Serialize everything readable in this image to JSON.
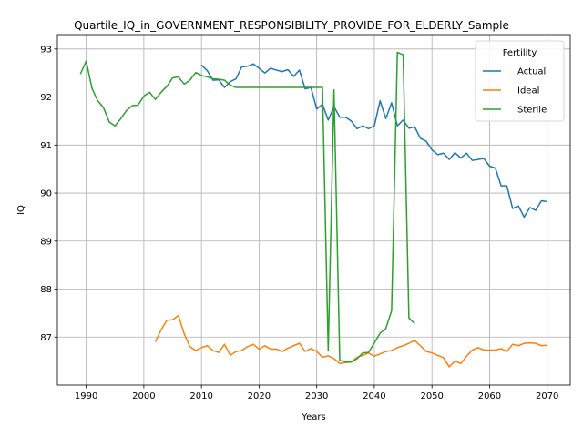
{
  "chart_data": {
    "type": "line",
    "title": "Quartile_IQ_in_GOVERNMENT_RESPONSIBILITY_PROVIDE_FOR_ELDERLY_Sample",
    "xlabel": "Years",
    "ylabel": "IQ",
    "xlim": [
      1985,
      2074
    ],
    "ylim": [
      86.0,
      93.3
    ],
    "xticks": [
      1990,
      2000,
      2010,
      2020,
      2030,
      2040,
      2050,
      2060,
      2070
    ],
    "yticks": [
      87,
      88,
      89,
      90,
      91,
      92,
      93
    ],
    "grid": true,
    "legend": {
      "title": "Fertility",
      "placement": "top-right"
    },
    "series": [
      {
        "name": "Actual",
        "color": "#1f77b4",
        "x": [
          2010,
          2011,
          2012,
          2013,
          2014,
          2015,
          2016,
          2017,
          2018,
          2019,
          2020,
          2021,
          2022,
          2023,
          2024,
          2025,
          2026,
          2027,
          2028,
          2029,
          2030,
          2031,
          2032,
          2033,
          2034,
          2035,
          2036,
          2037,
          2038,
          2039,
          2040,
          2041,
          2042,
          2043,
          2044,
          2045,
          2046,
          2047,
          2048,
          2049,
          2050,
          2051,
          2052,
          2053,
          2054,
          2055,
          2056,
          2057,
          2058,
          2059,
          2060,
          2061,
          2062,
          2063,
          2064,
          2065,
          2066,
          2067,
          2068,
          2069,
          2070
        ],
        "values": [
          92.67,
          92.55,
          92.35,
          92.36,
          92.2,
          92.32,
          92.38,
          92.63,
          92.64,
          92.69,
          92.6,
          92.5,
          92.6,
          92.56,
          92.53,
          92.57,
          92.43,
          92.56,
          92.17,
          92.2,
          91.75,
          91.85,
          91.52,
          91.8,
          91.58,
          91.58,
          91.5,
          91.34,
          91.4,
          91.34,
          91.4,
          91.92,
          91.55,
          91.88,
          91.4,
          91.52,
          91.35,
          91.38,
          91.14,
          91.08,
          90.9,
          90.8,
          90.83,
          90.7,
          90.84,
          90.73,
          90.83,
          90.68,
          90.7,
          90.72,
          90.56,
          90.52,
          90.15,
          90.15,
          89.68,
          89.73,
          89.5,
          89.7,
          89.64,
          89.84,
          89.82
        ]
      },
      {
        "name": "Ideal",
        "color": "#ff7f0e",
        "x": [
          2002,
          2003,
          2004,
          2005,
          2006,
          2007,
          2008,
          2009,
          2010,
          2011,
          2012,
          2013,
          2014,
          2015,
          2016,
          2017,
          2018,
          2019,
          2020,
          2021,
          2022,
          2023,
          2024,
          2025,
          2026,
          2027,
          2028,
          2029,
          2030,
          2031,
          2032,
          2033,
          2034,
          2035,
          2036,
          2037,
          2038,
          2039,
          2040,
          2041,
          2042,
          2043,
          2044,
          2045,
          2046,
          2047,
          2048,
          2049,
          2050,
          2051,
          2052,
          2053,
          2054,
          2055,
          2056,
          2057,
          2058,
          2059,
          2060,
          2061,
          2062,
          2063,
          2064,
          2065,
          2066,
          2067,
          2068,
          2069,
          2070
        ],
        "values": [
          86.9,
          87.15,
          87.35,
          87.36,
          87.45,
          87.07,
          86.8,
          86.72,
          86.78,
          86.82,
          86.72,
          86.68,
          86.85,
          86.62,
          86.7,
          86.72,
          86.8,
          86.85,
          86.75,
          86.82,
          86.75,
          86.75,
          86.7,
          86.77,
          86.82,
          86.87,
          86.7,
          86.76,
          86.7,
          86.58,
          86.61,
          86.55,
          86.45,
          86.47,
          86.48,
          86.58,
          86.62,
          86.67,
          86.6,
          86.65,
          86.7,
          86.72,
          86.78,
          86.82,
          86.87,
          86.93,
          86.82,
          86.7,
          86.67,
          86.62,
          86.57,
          86.38,
          86.5,
          86.45,
          86.6,
          86.73,
          86.78,
          86.73,
          86.73,
          86.73,
          86.76,
          86.7,
          86.85,
          86.82,
          86.87,
          86.88,
          86.87,
          86.82,
          86.83
        ]
      },
      {
        "name": "Sterile",
        "color": "#2ca02c",
        "x": [
          1989,
          1990,
          1991,
          1992,
          1993,
          1994,
          1995,
          1996,
          1997,
          1998,
          1999,
          2000,
          2001,
          2002,
          2003,
          2004,
          2005,
          2006,
          2007,
          2008,
          2009,
          2010,
          2011,
          2012,
          2013,
          2014,
          2015,
          2016,
          2017,
          2018,
          2019,
          2020,
          2021,
          2022,
          2023,
          2024,
          2025,
          2026,
          2027,
          2028,
          2029,
          2030,
          2031,
          2032,
          2033,
          2034,
          2035,
          2036,
          2037,
          2038,
          2039,
          2040,
          2041,
          2042,
          2043,
          2044,
          2045,
          2046,
          2047
        ],
        "values": [
          92.48,
          92.75,
          92.18,
          91.92,
          91.78,
          91.48,
          91.4,
          91.55,
          91.72,
          91.82,
          91.83,
          92.02,
          92.1,
          91.95,
          92.1,
          92.22,
          92.4,
          92.42,
          92.27,
          92.35,
          92.51,
          92.45,
          92.42,
          92.38,
          92.37,
          92.35,
          92.25,
          92.2,
          92.2,
          92.2,
          92.2,
          92.2,
          92.2,
          92.2,
          92.2,
          92.2,
          92.2,
          92.2,
          92.2,
          92.2,
          92.2,
          92.2,
          92.2,
          86.72,
          92.15,
          86.52,
          86.48,
          86.48,
          86.55,
          86.67,
          86.68,
          86.88,
          87.08,
          87.18,
          87.55,
          92.93,
          92.88,
          87.4,
          87.28
        ]
      }
    ]
  }
}
